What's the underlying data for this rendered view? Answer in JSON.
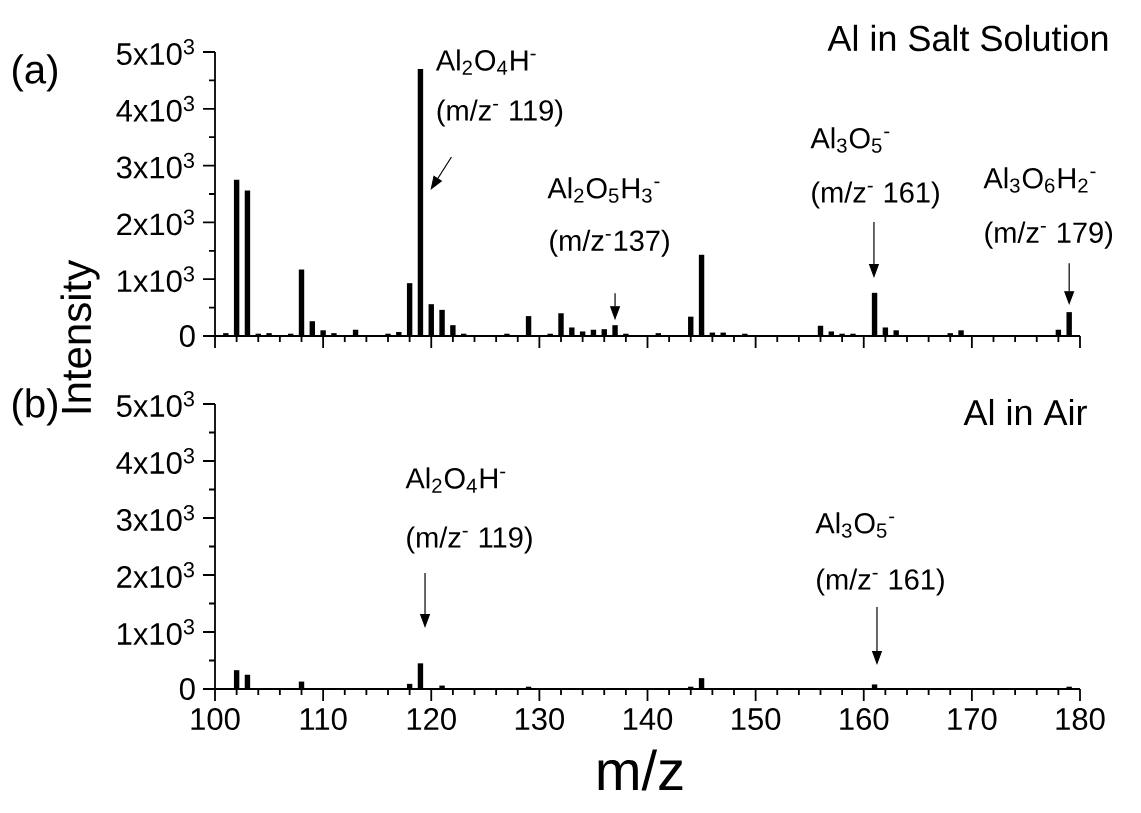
{
  "chart_data": [
    {
      "type": "bar",
      "title": "Al in Salt Solution",
      "ylabel": "Intensity",
      "color": "#000000",
      "x": [
        101,
        102,
        103,
        104,
        105,
        107,
        108,
        109,
        110,
        111,
        113,
        116,
        117,
        118,
        119,
        120,
        121,
        122,
        123,
        127,
        129,
        131,
        132,
        133,
        134,
        135,
        136,
        137,
        138,
        141,
        144,
        145,
        146,
        147,
        149,
        156,
        157,
        158,
        159,
        161,
        162,
        163,
        168,
        169,
        178,
        179
      ],
      "values": [
        50,
        2750,
        2560,
        40,
        50,
        40,
        1170,
        260,
        100,
        50,
        110,
        40,
        70,
        930,
        4700,
        560,
        460,
        190,
        40,
        40,
        350,
        40,
        400,
        150,
        80,
        110,
        120,
        190,
        40,
        50,
        340,
        1430,
        60,
        60,
        40,
        180,
        80,
        40,
        40,
        760,
        150,
        100,
        50,
        100,
        110,
        420
      ],
      "xlim": [
        100,
        180
      ],
      "xticks": [
        100,
        110,
        120,
        130,
        140,
        150,
        160,
        170,
        180
      ],
      "ylim": [
        0,
        5000
      ],
      "yticks": [
        0,
        {
          "value": 1000,
          "label": "1x10$^{3}$"
        },
        {
          "value": 2000,
          "label": "2x10$^{3}$"
        },
        {
          "value": 3000,
          "label": "3x10$^{3}$"
        },
        {
          "value": 4000,
          "label": "4x10$^{3}$"
        },
        {
          "value": 5000,
          "label": "5x10$^{3}$"
        }
      ],
      "tick_labels": "y",
      "annotations": [
        "(a)",
        {
          "text": "Al$_{2}$O$_{4}$H$^{-}$",
          "x": 119,
          "y": 4700
        },
        {
          "text": "(m/z$^{-}$ 119)",
          "x": 119,
          "y": 4700
        },
        "Al$_{2}$O$_{5}$H$_{3}$$^{-}$",
        {
          "text": "(m/z$^{-}$137)",
          "x": 137,
          "y": 190
        },
        "Al$_{3}$O$_{5}$$^{-}$",
        "(m/z$^{-}$ 161)",
        "Al$_{3}$O$_{6}$H$_{2}$$^{-}$",
        {
          "text": "(m/z$^{-}$ 179)",
          "x": 179,
          "y": 420
        }
      ]
    },
    {
      "type": "bar",
      "title": "Al in Air",
      "xlabel": "m/z",
      "color": "#000000",
      "x": [
        102,
        103,
        108,
        118,
        119,
        121,
        129,
        144,
        145,
        161,
        179
      ],
      "values": [
        330,
        250,
        130,
        90,
        450,
        60,
        40,
        40,
        190,
        80,
        40
      ],
      "xlim": [
        100,
        180
      ],
      "xticks": [
        100,
        110,
        120,
        130,
        140,
        150,
        160,
        170,
        180
      ],
      "ylim": [
        0,
        5000
      ],
      "yticks": [
        0,
        {
          "value": 1000,
          "label": "1x10$^{3}$"
        },
        {
          "value": 2000,
          "label": "2x10$^{3}$"
        },
        {
          "value": 3000,
          "label": "3x10$^{3}$"
        },
        {
          "value": 4000,
          "label": "4x10$^{3}$"
        },
        {
          "value": 5000,
          "label": "5x10$^{3}$"
        }
      ],
      "annotations": [
        "(b)",
        "Al$_{2}$O$_{4}$H$^{-}$",
        "(m/z$^{-}$ 119)",
        "Al$_{3}$O$_{5}$$^{-}$",
        "(m/z$^{-}$ 161)"
      ]
    }
  ]
}
